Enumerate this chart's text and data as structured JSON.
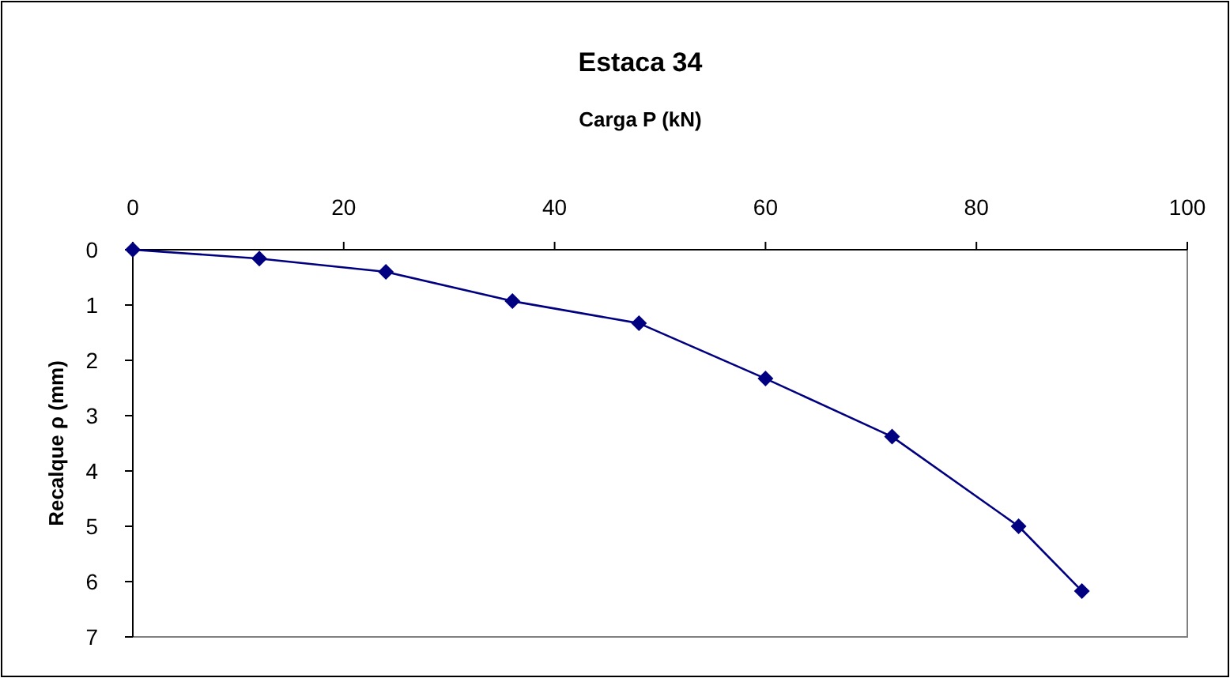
{
  "chart_data": {
    "type": "line",
    "title": "Estaca 34",
    "xlabel": "Carga P (kN)",
    "ylabel": "Recalque  ρ (mm)",
    "x": [
      0,
      12,
      24,
      36,
      48,
      60,
      72,
      84,
      90
    ],
    "series": [
      {
        "color": "#000080",
        "values": [
          0,
          0.16,
          0.4,
          0.93,
          1.33,
          2.33,
          3.38,
          5.0,
          6.17
        ]
      }
    ],
    "xlim": [
      0,
      100
    ],
    "xticks": [
      0,
      20,
      40,
      60,
      80,
      100
    ],
    "ylim": [
      7,
      0
    ],
    "yticks": [
      0,
      1,
      2,
      3,
      4,
      5,
      6,
      7
    ],
    "grid": false,
    "marker": "diamond",
    "line_style": "solid"
  }
}
